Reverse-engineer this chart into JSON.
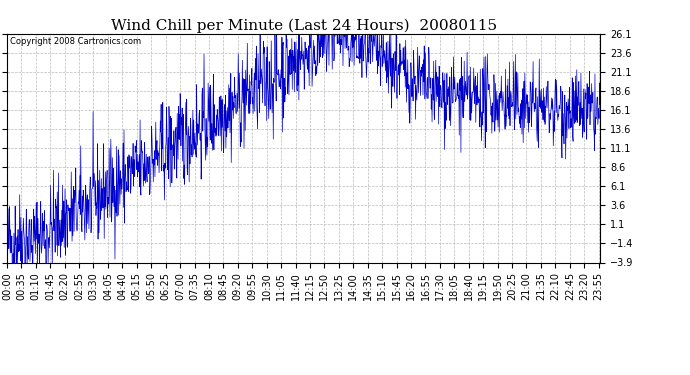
{
  "title": "Wind Chill per Minute (Last 24 Hours)  20080115",
  "copyright": "Copyright 2008 Cartronics.com",
  "y_ticks": [
    26.1,
    23.6,
    21.1,
    18.6,
    16.1,
    13.6,
    11.1,
    8.6,
    6.1,
    3.6,
    1.1,
    -1.4,
    -3.9
  ],
  "y_min": -3.9,
  "y_max": 26.1,
  "line_color": "#0000cc",
  "background_color": "#ffffff",
  "grid_color": "#bbbbbb",
  "x_tick_interval": 35,
  "total_minutes": 1440,
  "title_fontsize": 11,
  "tick_fontsize": 7,
  "copyright_fontsize": 6
}
